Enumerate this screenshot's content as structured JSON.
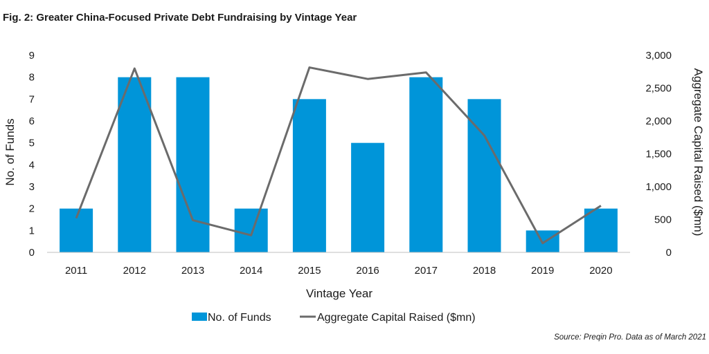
{
  "figure": {
    "title": "Fig. 2: Greater China-Focused Private Debt Fundraising by Vintage Year",
    "source": "Source: Preqin Pro. Data as of March 2021"
  },
  "colors": {
    "bar": "#0095d9",
    "line": "#6b6b6b",
    "axis": "#bfbfbf"
  },
  "chart_data": {
    "type": "bar",
    "title": "Fig. 2: Greater China-Focused Private Debt Fundraising by Vintage Year",
    "xlabel": "Vintage Year",
    "ylabel": "No. of Funds",
    "y2label": "Aggregate Capital Raised ($mn)",
    "categories": [
      "2011",
      "2012",
      "2013",
      "2014",
      "2015",
      "2016",
      "2017",
      "2018",
      "2019",
      "2020"
    ],
    "ylim": [
      0,
      9
    ],
    "y2lim": [
      0,
      3000
    ],
    "yticks": [
      "0",
      "1",
      "2",
      "3",
      "4",
      "5",
      "6",
      "7",
      "8",
      "9"
    ],
    "y2ticks": [
      "0",
      "500",
      "1,000",
      "1,500",
      "2,000",
      "2,500",
      "3,000"
    ],
    "grid": false,
    "legend_position": "bottom",
    "series": [
      {
        "name": "No. of Funds",
        "type": "bar",
        "axis": "left",
        "values": [
          2,
          8,
          8,
          2,
          7,
          5,
          8,
          7,
          1,
          2
        ]
      },
      {
        "name": "Aggregate Capital Raised ($mn)",
        "type": "line",
        "axis": "right",
        "values": [
          520,
          2800,
          490,
          260,
          2815,
          2640,
          2740,
          1780,
          140,
          710
        ]
      }
    ]
  }
}
